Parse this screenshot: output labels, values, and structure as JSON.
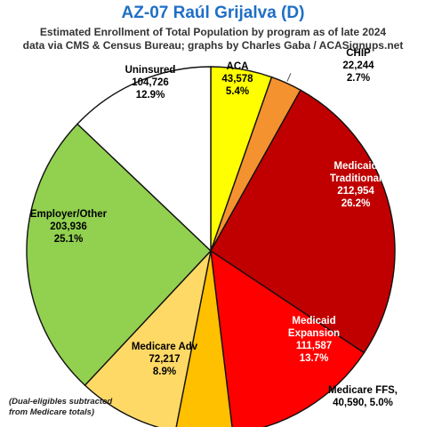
{
  "chart_data": {
    "type": "pie",
    "title": "AZ-07 Raúl Grijalva (D)",
    "subtitle_lines": [
      "Estimated Enrollment of Total Population by program as of late 2024",
      "data via CMS & Census Bureau; graphs by Charles Gaba / ACASignups.net"
    ],
    "footnote_lines": [
      "(Dual-eligibles subtracted",
      "from Medicare totals)"
    ],
    "slices": [
      {
        "label_lines": [
          "ACA",
          "43,578",
          "5.4%"
        ],
        "value": 43578,
        "percent": 5.4,
        "color": "#ffff00",
        "text_color": "#000000"
      },
      {
        "label_lines": [
          "CHIP",
          "22,244",
          "2.7%"
        ],
        "value": 22244,
        "percent": 2.7,
        "color": "#f4922f",
        "text_color": "#000000"
      },
      {
        "label_lines": [
          "Medicaid",
          "Traditional",
          "212,954",
          "26.2%"
        ],
        "value": 212954,
        "percent": 26.2,
        "color": "#c00000",
        "text_color": "#ffffff"
      },
      {
        "label_lines": [
          "Medicaid",
          "Expansion",
          "111,587",
          "13.7%"
        ],
        "value": 111587,
        "percent": 13.7,
        "color": "#ff0000",
        "text_color": "#ffffff"
      },
      {
        "label_lines": [
          "Medicare FFS,",
          "40,590, 5.0%"
        ],
        "value": 40590,
        "percent": 5.0,
        "color": "#ffc000",
        "text_color": "#000000"
      },
      {
        "label_lines": [
          "Medicare Adv",
          "72,217",
          "8.9%"
        ],
        "value": 72217,
        "percent": 8.9,
        "color": "#ffd966",
        "text_color": "#000000"
      },
      {
        "label_lines": [
          "Employer/Other",
          "203,936",
          "25.1%"
        ],
        "value": 203936,
        "percent": 25.1,
        "color": "#92d050",
        "text_color": "#000000"
      },
      {
        "label_lines": [
          "Uninsured",
          "104,726",
          "12.9%"
        ],
        "value": 104726,
        "percent": 12.9,
        "color": "#ffffff",
        "text_color": "#000000"
      }
    ]
  }
}
